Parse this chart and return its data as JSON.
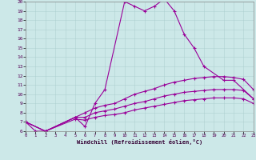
{
  "background_color": "#cce8e8",
  "line_color": "#990099",
  "xlabel": "Windchill (Refroidissement éolien,°C)",
  "xlim": [
    0,
    23
  ],
  "ylim": [
    6,
    20
  ],
  "xticks": [
    0,
    1,
    2,
    3,
    4,
    5,
    6,
    7,
    8,
    9,
    10,
    11,
    12,
    13,
    14,
    15,
    16,
    17,
    18,
    19,
    20,
    21,
    22,
    23
  ],
  "yticks": [
    6,
    7,
    8,
    9,
    10,
    11,
    12,
    13,
    14,
    15,
    16,
    17,
    18,
    19,
    20
  ],
  "line1_x": [
    0,
    1,
    2,
    5,
    6,
    7,
    8,
    10,
    11,
    12,
    13,
    14,
    15,
    16,
    17,
    18,
    20,
    21,
    23
  ],
  "line1_y": [
    7.0,
    6.0,
    6.0,
    7.5,
    6.5,
    9.0,
    10.5,
    20.0,
    19.5,
    19.0,
    19.5,
    20.3,
    19.0,
    16.5,
    15.0,
    13.0,
    11.5,
    11.5,
    9.5
  ],
  "line2_x": [
    0,
    2,
    5,
    6,
    7,
    8,
    9,
    10,
    11,
    12,
    13,
    14,
    15,
    16,
    17,
    18,
    19,
    20,
    21,
    22,
    23
  ],
  "line2_y": [
    7.0,
    6.0,
    7.5,
    8.0,
    8.5,
    8.8,
    9.0,
    9.5,
    10.0,
    10.3,
    10.6,
    11.0,
    11.3,
    11.5,
    11.7,
    11.8,
    11.9,
    11.9,
    11.8,
    11.6,
    10.5
  ],
  "line3_x": [
    0,
    2,
    5,
    6,
    7,
    8,
    9,
    10,
    11,
    12,
    13,
    14,
    15,
    16,
    17,
    18,
    19,
    20,
    21,
    22,
    23
  ],
  "line3_y": [
    7.0,
    6.0,
    7.5,
    7.5,
    8.0,
    8.2,
    8.4,
    8.7,
    9.0,
    9.2,
    9.5,
    9.8,
    10.0,
    10.2,
    10.3,
    10.4,
    10.5,
    10.5,
    10.5,
    10.4,
    9.5
  ],
  "line4_x": [
    0,
    2,
    5,
    6,
    7,
    8,
    9,
    10,
    11,
    12,
    13,
    14,
    15,
    16,
    17,
    18,
    19,
    20,
    21,
    22,
    23
  ],
  "line4_y": [
    7.0,
    6.0,
    7.3,
    7.2,
    7.5,
    7.7,
    7.8,
    8.0,
    8.3,
    8.5,
    8.7,
    8.9,
    9.1,
    9.3,
    9.4,
    9.5,
    9.6,
    9.6,
    9.6,
    9.5,
    9.0
  ]
}
